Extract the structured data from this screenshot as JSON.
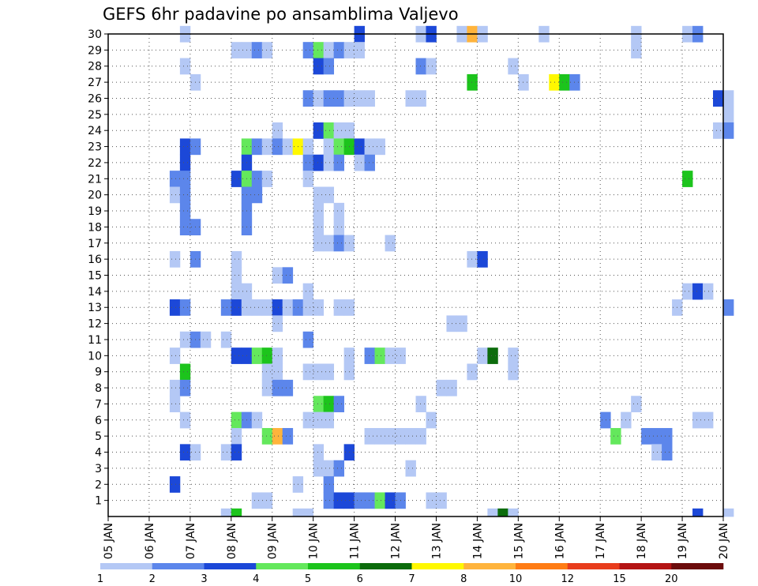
{
  "chart_data": {
    "type": "heatmap",
    "title": "GEFS 6hr padavine po ansamblima Valjevo",
    "xlabel": "",
    "ylabel": "",
    "x_ticks": [
      "05 JAN",
      "06 JAN",
      "07 JAN",
      "08 JAN",
      "09 JAN",
      "10 JAN",
      "11 JAN",
      "12 JAN",
      "13 JAN",
      "14 JAN",
      "15 JAN",
      "16 JAN",
      "17 JAN",
      "18 JAN",
      "19 JAN",
      "20 JAN"
    ],
    "y_ticks": [
      1,
      2,
      3,
      4,
      5,
      6,
      7,
      8,
      9,
      10,
      11,
      12,
      13,
      14,
      15,
      16,
      17,
      18,
      19,
      20,
      21,
      22,
      23,
      24,
      25,
      26,
      27,
      28,
      29,
      30
    ],
    "xlim_days": [
      0,
      15
    ],
    "ylim": [
      0,
      30
    ],
    "time_step_hours": 6,
    "grid": "dotted",
    "legend": {
      "placement": "bottom",
      "labels": [
        "1",
        "2",
        "3",
        "4",
        "5",
        "6",
        "7",
        "8",
        "10",
        "12",
        "15",
        "20"
      ],
      "colors": [
        "#b4c8f5",
        "#5c86eb",
        "#1c48d8",
        "#64e85c",
        "#1cc41c",
        "#0c6c0c",
        "#fff800",
        "#ffb43c",
        "#ff7c14",
        "#e83c1c",
        "#b41414",
        "#6c0c0c"
      ]
    },
    "class_colors": [
      "#ffffff",
      "#b4c8f5",
      "#5c86eb",
      "#1c48d8",
      "#64e85c",
      "#1cc41c",
      "#0c6c0c",
      "#fff800",
      "#ffb43c"
    ],
    "cells_note": "each entry: [step index from 05 JAN 00Z in 6h steps, ensemble member, color class]",
    "cells": [
      [
        7,
        30,
        1
      ],
      [
        24,
        30,
        3
      ],
      [
        30,
        30,
        1
      ],
      [
        31,
        30,
        3
      ],
      [
        34,
        30,
        1
      ],
      [
        35,
        30,
        8
      ],
      [
        36,
        30,
        1
      ],
      [
        42,
        30,
        1
      ],
      [
        51,
        30,
        1
      ],
      [
        56,
        30,
        1
      ],
      [
        57,
        30,
        2
      ],
      [
        12,
        29,
        1
      ],
      [
        13,
        29,
        1
      ],
      [
        14,
        29,
        2
      ],
      [
        15,
        29,
        1
      ],
      [
        19,
        29,
        2
      ],
      [
        20,
        29,
        4
      ],
      [
        21,
        29,
        1
      ],
      [
        22,
        29,
        2
      ],
      [
        23,
        29,
        1
      ],
      [
        24,
        29,
        1
      ],
      [
        51,
        29,
        1
      ],
      [
        7,
        28,
        1
      ],
      [
        20,
        28,
        3
      ],
      [
        21,
        28,
        2
      ],
      [
        30,
        28,
        2
      ],
      [
        31,
        28,
        1
      ],
      [
        39,
        28,
        1
      ],
      [
        8,
        27,
        1
      ],
      [
        35,
        27,
        5
      ],
      [
        40,
        27,
        1
      ],
      [
        43,
        27,
        7
      ],
      [
        44,
        27,
        5
      ],
      [
        45,
        27,
        2
      ],
      [
        19,
        26,
        2
      ],
      [
        20,
        26,
        1
      ],
      [
        21,
        26,
        2
      ],
      [
        22,
        26,
        2
      ],
      [
        23,
        26,
        1
      ],
      [
        24,
        26,
        1
      ],
      [
        25,
        26,
        1
      ],
      [
        29,
        26,
        1
      ],
      [
        30,
        26,
        1
      ],
      [
        59,
        26,
        3
      ],
      [
        60,
        26,
        1
      ],
      [
        60,
        25,
        1
      ],
      [
        16,
        24,
        1
      ],
      [
        20,
        24,
        3
      ],
      [
        21,
        24,
        4
      ],
      [
        22,
        24,
        1
      ],
      [
        23,
        24,
        1
      ],
      [
        59,
        24,
        1
      ],
      [
        60,
        24,
        2
      ],
      [
        7,
        23,
        3
      ],
      [
        8,
        23,
        2
      ],
      [
        13,
        23,
        4
      ],
      [
        14,
        23,
        2
      ],
      [
        15,
        23,
        1
      ],
      [
        16,
        23,
        2
      ],
      [
        17,
        23,
        1
      ],
      [
        18,
        23,
        7
      ],
      [
        19,
        23,
        1
      ],
      [
        21,
        23,
        1
      ],
      [
        22,
        23,
        4
      ],
      [
        23,
        23,
        5
      ],
      [
        24,
        23,
        3
      ],
      [
        25,
        23,
        1
      ],
      [
        26,
        23,
        1
      ],
      [
        7,
        22,
        3
      ],
      [
        13,
        22,
        3
      ],
      [
        19,
        22,
        2
      ],
      [
        20,
        22,
        3
      ],
      [
        21,
        22,
        1
      ],
      [
        22,
        22,
        2
      ],
      [
        24,
        22,
        1
      ],
      [
        25,
        22,
        2
      ],
      [
        6,
        21,
        2
      ],
      [
        7,
        21,
        2
      ],
      [
        12,
        21,
        3
      ],
      [
        13,
        21,
        4
      ],
      [
        14,
        21,
        2
      ],
      [
        15,
        21,
        1
      ],
      [
        19,
        21,
        1
      ],
      [
        56,
        21,
        5
      ],
      [
        6,
        20,
        1
      ],
      [
        7,
        20,
        2
      ],
      [
        13,
        20,
        2
      ],
      [
        14,
        20,
        2
      ],
      [
        20,
        20,
        1
      ],
      [
        21,
        20,
        1
      ],
      [
        7,
        19,
        2
      ],
      [
        13,
        19,
        2
      ],
      [
        20,
        19,
        1
      ],
      [
        22,
        19,
        1
      ],
      [
        7,
        18,
        2
      ],
      [
        8,
        18,
        2
      ],
      [
        13,
        18,
        2
      ],
      [
        20,
        18,
        1
      ],
      [
        22,
        18,
        1
      ],
      [
        20,
        17,
        1
      ],
      [
        21,
        17,
        1
      ],
      [
        22,
        17,
        2
      ],
      [
        23,
        17,
        1
      ],
      [
        27,
        17,
        1
      ],
      [
        6,
        16,
        1
      ],
      [
        8,
        16,
        2
      ],
      [
        12,
        16,
        1
      ],
      [
        35,
        16,
        1
      ],
      [
        36,
        16,
        3
      ],
      [
        12,
        15,
        1
      ],
      [
        16,
        15,
        1
      ],
      [
        17,
        15,
        2
      ],
      [
        12,
        14,
        1
      ],
      [
        13,
        14,
        1
      ],
      [
        19,
        14,
        1
      ],
      [
        56,
        14,
        1
      ],
      [
        57,
        14,
        3
      ],
      [
        58,
        14,
        1
      ],
      [
        6,
        13,
        3
      ],
      [
        7,
        13,
        2
      ],
      [
        11,
        13,
        2
      ],
      [
        12,
        13,
        3
      ],
      [
        13,
        13,
        1
      ],
      [
        14,
        13,
        1
      ],
      [
        15,
        13,
        1
      ],
      [
        16,
        13,
        3
      ],
      [
        17,
        13,
        1
      ],
      [
        18,
        13,
        2
      ],
      [
        19,
        13,
        1
      ],
      [
        20,
        13,
        1
      ],
      [
        22,
        13,
        1
      ],
      [
        23,
        13,
        1
      ],
      [
        55,
        13,
        1
      ],
      [
        60,
        13,
        2
      ],
      [
        16,
        12,
        1
      ],
      [
        33,
        12,
        1
      ],
      [
        34,
        12,
        1
      ],
      [
        7,
        11,
        1
      ],
      [
        8,
        11,
        2
      ],
      [
        9,
        11,
        1
      ],
      [
        11,
        11,
        1
      ],
      [
        19,
        11,
        2
      ],
      [
        6,
        10,
        1
      ],
      [
        12,
        10,
        3
      ],
      [
        13,
        10,
        3
      ],
      [
        14,
        10,
        4
      ],
      [
        15,
        10,
        5
      ],
      [
        16,
        10,
        1
      ],
      [
        23,
        10,
        1
      ],
      [
        25,
        10,
        2
      ],
      [
        26,
        10,
        4
      ],
      [
        27,
        10,
        1
      ],
      [
        28,
        10,
        1
      ],
      [
        36,
        10,
        1
      ],
      [
        37,
        10,
        6
      ],
      [
        39,
        10,
        1
      ],
      [
        7,
        9,
        5
      ],
      [
        15,
        9,
        1
      ],
      [
        16,
        9,
        1
      ],
      [
        19,
        9,
        1
      ],
      [
        20,
        9,
        1
      ],
      [
        21,
        9,
        1
      ],
      [
        23,
        9,
        1
      ],
      [
        35,
        9,
        1
      ],
      [
        39,
        9,
        1
      ],
      [
        6,
        8,
        1
      ],
      [
        7,
        8,
        2
      ],
      [
        15,
        8,
        1
      ],
      [
        16,
        8,
        2
      ],
      [
        17,
        8,
        2
      ],
      [
        32,
        8,
        1
      ],
      [
        33,
        8,
        1
      ],
      [
        6,
        7,
        1
      ],
      [
        20,
        7,
        4
      ],
      [
        21,
        7,
        5
      ],
      [
        22,
        7,
        2
      ],
      [
        30,
        7,
        1
      ],
      [
        51,
        7,
        1
      ],
      [
        7,
        6,
        1
      ],
      [
        12,
        6,
        4
      ],
      [
        13,
        6,
        2
      ],
      [
        14,
        6,
        1
      ],
      [
        19,
        6,
        1
      ],
      [
        20,
        6,
        1
      ],
      [
        21,
        6,
        1
      ],
      [
        31,
        6,
        1
      ],
      [
        48,
        6,
        2
      ],
      [
        50,
        6,
        1
      ],
      [
        57,
        6,
        1
      ],
      [
        58,
        6,
        1
      ],
      [
        12,
        5,
        1
      ],
      [
        15,
        5,
        4
      ],
      [
        16,
        5,
        8
      ],
      [
        17,
        5,
        2
      ],
      [
        25,
        5,
        1
      ],
      [
        26,
        5,
        1
      ],
      [
        27,
        5,
        1
      ],
      [
        28,
        5,
        1
      ],
      [
        29,
        5,
        1
      ],
      [
        30,
        5,
        1
      ],
      [
        49,
        5,
        4
      ],
      [
        52,
        5,
        2
      ],
      [
        53,
        5,
        2
      ],
      [
        54,
        5,
        2
      ],
      [
        7,
        4,
        3
      ],
      [
        8,
        4,
        1
      ],
      [
        11,
        4,
        1
      ],
      [
        12,
        4,
        3
      ],
      [
        20,
        4,
        1
      ],
      [
        23,
        4,
        3
      ],
      [
        53,
        4,
        1
      ],
      [
        54,
        4,
        2
      ],
      [
        20,
        3,
        1
      ],
      [
        21,
        3,
        1
      ],
      [
        22,
        3,
        2
      ],
      [
        29,
        3,
        1
      ],
      [
        6,
        2,
        3
      ],
      [
        18,
        2,
        1
      ],
      [
        21,
        2,
        2
      ],
      [
        14,
        1,
        1
      ],
      [
        15,
        1,
        1
      ],
      [
        21,
        1,
        2
      ],
      [
        22,
        1,
        3
      ],
      [
        23,
        1,
        3
      ],
      [
        24,
        1,
        2
      ],
      [
        25,
        1,
        2
      ],
      [
        26,
        1,
        4
      ],
      [
        27,
        1,
        3
      ],
      [
        28,
        1,
        2
      ],
      [
        31,
        1,
        1
      ],
      [
        32,
        1,
        1
      ],
      [
        11,
        0,
        1
      ],
      [
        12,
        0,
        5
      ],
      [
        18,
        0,
        1
      ],
      [
        19,
        0,
        1
      ],
      [
        37,
        0,
        1
      ],
      [
        38,
        0,
        6
      ],
      [
        39,
        0,
        1
      ],
      [
        57,
        0,
        3
      ],
      [
        60,
        0,
        1
      ]
    ]
  }
}
